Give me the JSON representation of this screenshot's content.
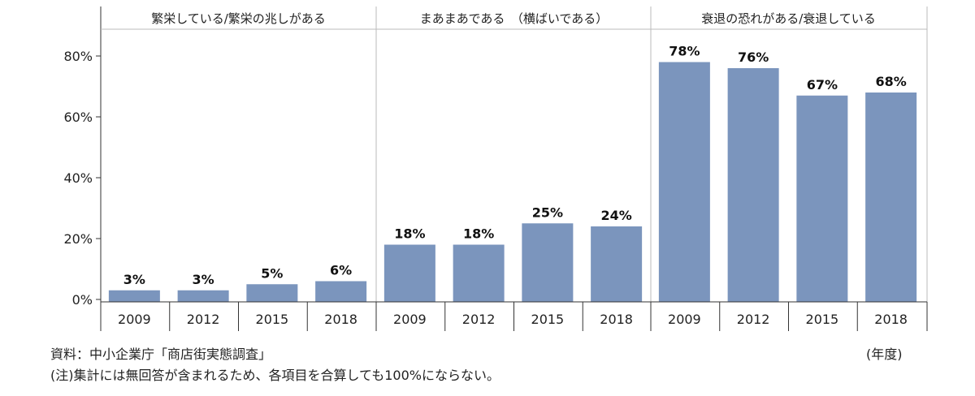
{
  "chart_data": {
    "type": "bar",
    "groups": [
      {
        "label": "繁栄している/繁栄の兆しがある",
        "categories": [
          "2009",
          "2012",
          "2015",
          "2018"
        ],
        "values": [
          3,
          3,
          5,
          6
        ],
        "value_labels": [
          "3%",
          "3%",
          "5%",
          "6%"
        ]
      },
      {
        "label": "まあまあである　（横ばいである）",
        "categories": [
          "2009",
          "2012",
          "2015",
          "2018"
        ],
        "values": [
          18,
          18,
          25,
          24
        ],
        "value_labels": [
          "18%",
          "18%",
          "25%",
          "24%"
        ]
      },
      {
        "label": "衰退の恐れがある/衰退している",
        "categories": [
          "2009",
          "2012",
          "2015",
          "2018"
        ],
        "values": [
          78,
          76,
          67,
          68
        ],
        "value_labels": [
          "78%",
          "76%",
          "67%",
          "68%"
        ]
      }
    ],
    "y_ticks": [
      0,
      20,
      40,
      60,
      80
    ],
    "y_tick_labels": [
      "0%",
      "20%",
      "40%",
      "60%",
      "80%"
    ],
    "ylim": [
      0,
      85
    ],
    "bar_color": "#7b95bd",
    "grid": false
  },
  "notes": {
    "source": "資料：中小企業庁「商店街実態調査」",
    "unit": "(年度)",
    "footnote": "(注)集計には無回答が含まれるため、各項目を合算しても100%にならない。"
  }
}
